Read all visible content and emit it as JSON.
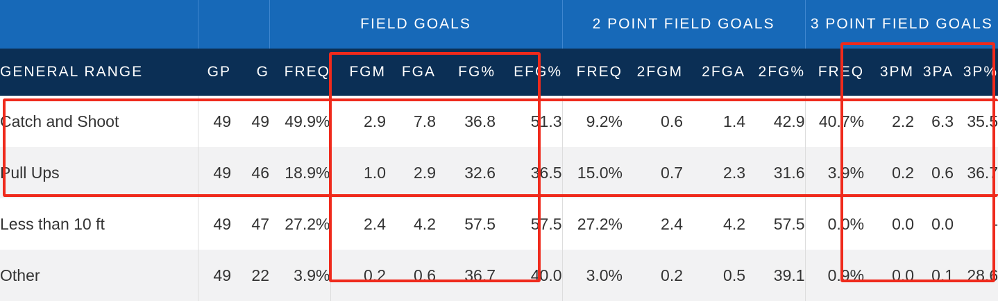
{
  "header": {
    "groups": [
      "",
      "",
      "FIELD GOALS",
      "2 POINT FIELD GOALS",
      "3 POINT FIELD GOALS"
    ],
    "columns": [
      "GENERAL RANGE",
      "GP",
      "G",
      "FREQ",
      "FGM",
      "FGA",
      "FG%",
      "EFG%",
      "FREQ",
      "2FGM",
      "2FGA",
      "2FG%",
      "FREQ",
      "3PM",
      "3PA",
      "3P%"
    ]
  },
  "rows": [
    {
      "label": "Catch and Shoot",
      "values": [
        "49",
        "49",
        "49.9%",
        "2.9",
        "7.8",
        "36.8",
        "51.3",
        "9.2%",
        "0.6",
        "1.4",
        "42.9",
        "40.7%",
        "2.2",
        "6.3",
        "35.5"
      ]
    },
    {
      "label": "Pull Ups",
      "values": [
        "49",
        "46",
        "18.9%",
        "1.0",
        "2.9",
        "32.6",
        "36.5",
        "15.0%",
        "0.7",
        "2.3",
        "31.6",
        "3.9%",
        "0.2",
        "0.6",
        "36.7"
      ]
    },
    {
      "label": "Less than 10 ft",
      "values": [
        "49",
        "47",
        "27.2%",
        "2.4",
        "4.2",
        "57.5",
        "57.5",
        "27.2%",
        "2.4",
        "4.2",
        "57.5",
        "0.0%",
        "0.0",
        "0.0",
        "-"
      ]
    },
    {
      "label": "Other",
      "values": [
        "49",
        "22",
        "3.9%",
        "0.2",
        "0.6",
        "36.7",
        "40.0",
        "3.0%",
        "0.2",
        "0.5",
        "39.1",
        "0.9%",
        "0.0",
        "0.1",
        "28.6"
      ]
    }
  ],
  "colors": {
    "group_header_bg": "#1769b8",
    "column_header_bg": "#0b2f55",
    "highlight_box": "#ef2a1c",
    "row_stripe": "#f2f2f3"
  }
}
